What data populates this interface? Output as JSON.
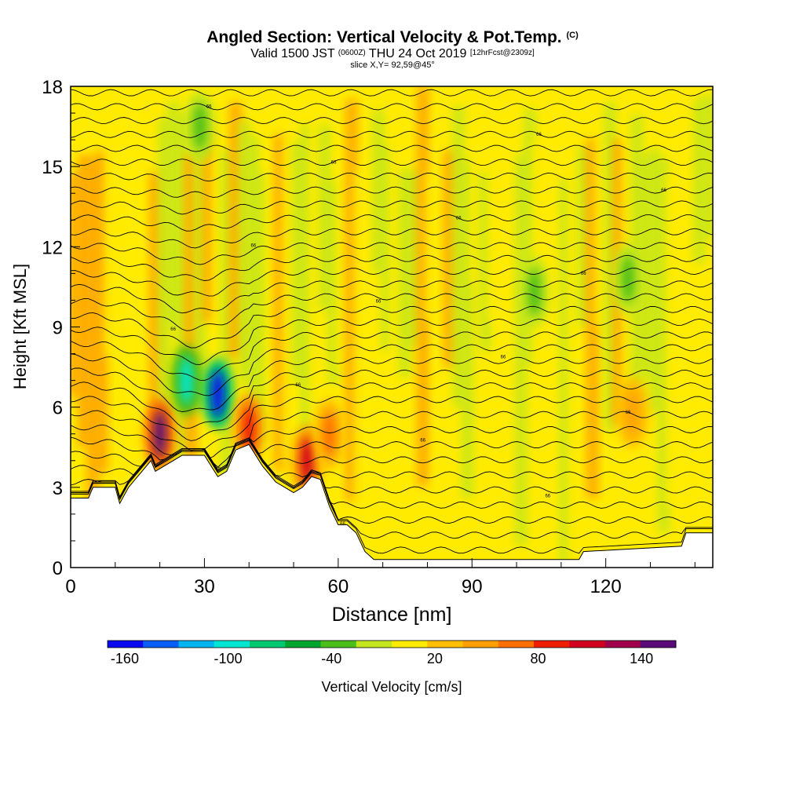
{
  "title": {
    "main": "Angled Section: Vertical Velocity & Pot.Temp.",
    "main_unit": "(C)",
    "valid_prefix": "Valid 1500 JST",
    "valid_zulu": "(0600Z)",
    "valid_date": "THU 24 Oct 2019",
    "forecast": "[12hrFcst@2309z]",
    "slice": "slice X,Y= 92,59@45°"
  },
  "chart_data": {
    "type": "heatmap",
    "xlabel": "Distance [nm]",
    "ylabel": "Height [Kft MSL]",
    "xlim": [
      0,
      144
    ],
    "ylim": [
      0,
      18
    ],
    "x_ticks": [
      0,
      30,
      60,
      90,
      120
    ],
    "y_ticks": [
      0,
      3,
      6,
      9,
      12,
      15,
      18
    ],
    "colorbar": {
      "label": "Vertical Velocity [cm/s]",
      "range": [
        -170,
        160
      ],
      "tick_labels": [
        -160,
        -100,
        -40,
        20,
        80,
        140
      ],
      "colors": [
        "#0a0af0",
        "#0a5ef5",
        "#00b4f0",
        "#00e6d2",
        "#00c870",
        "#00a52d",
        "#4bbe19",
        "#c3e61e",
        "#ffeb00",
        "#ffbe00",
        "#ffa000",
        "#ff6e00",
        "#f01e00",
        "#d2001e",
        "#a0004b",
        "#5a0a78"
      ]
    },
    "terrain_top_kft": [
      [
        0,
        2.6
      ],
      [
        4,
        2.6
      ],
      [
        5,
        3.0
      ],
      [
        10,
        3.0
      ],
      [
        11,
        2.4
      ],
      [
        13,
        3.0
      ],
      [
        15,
        3.4
      ],
      [
        16,
        3.6
      ],
      [
        18,
        4.0
      ],
      [
        19,
        3.6
      ],
      [
        21,
        3.8
      ],
      [
        23,
        4.0
      ],
      [
        25,
        4.2
      ],
      [
        27,
        4.2
      ],
      [
        30,
        4.2
      ],
      [
        33,
        3.4
      ],
      [
        35,
        3.6
      ],
      [
        37,
        4.4
      ],
      [
        40,
        4.6
      ],
      [
        43,
        3.8
      ],
      [
        46,
        3.2
      ],
      [
        48,
        3.0
      ],
      [
        50,
        2.8
      ],
      [
        52,
        3.0
      ],
      [
        54,
        3.4
      ],
      [
        56,
        3.3
      ],
      [
        58,
        2.3
      ],
      [
        60,
        1.6
      ],
      [
        62,
        1.6
      ],
      [
        64,
        1.3
      ],
      [
        66,
        0.6
      ],
      [
        68,
        0.3
      ],
      [
        84,
        0.3
      ],
      [
        114,
        0.3
      ],
      [
        115,
        0.6
      ],
      [
        137,
        0.8
      ],
      [
        138,
        1.3
      ],
      [
        144,
        1.3
      ]
    ],
    "features": [
      {
        "x": 20,
        "y": 5.0,
        "value": 140
      },
      {
        "x": 26,
        "y": 7.0,
        "value": -100
      },
      {
        "x": 33,
        "y": 6.5,
        "value": -150
      },
      {
        "x": 40,
        "y": 5.2,
        "value": 90
      },
      {
        "x": 53,
        "y": 4.0,
        "value": 110
      },
      {
        "x": 58,
        "y": 5.0,
        "value": 60
      },
      {
        "x": 126,
        "y": 5.8,
        "value": 55
      },
      {
        "x": 104,
        "y": 10.3,
        "value": -40
      },
      {
        "x": 125,
        "y": 10.8,
        "value": -45
      },
      {
        "x": 29,
        "y": 16.5,
        "value": -40
      }
    ],
    "contour_label_value": "66"
  }
}
